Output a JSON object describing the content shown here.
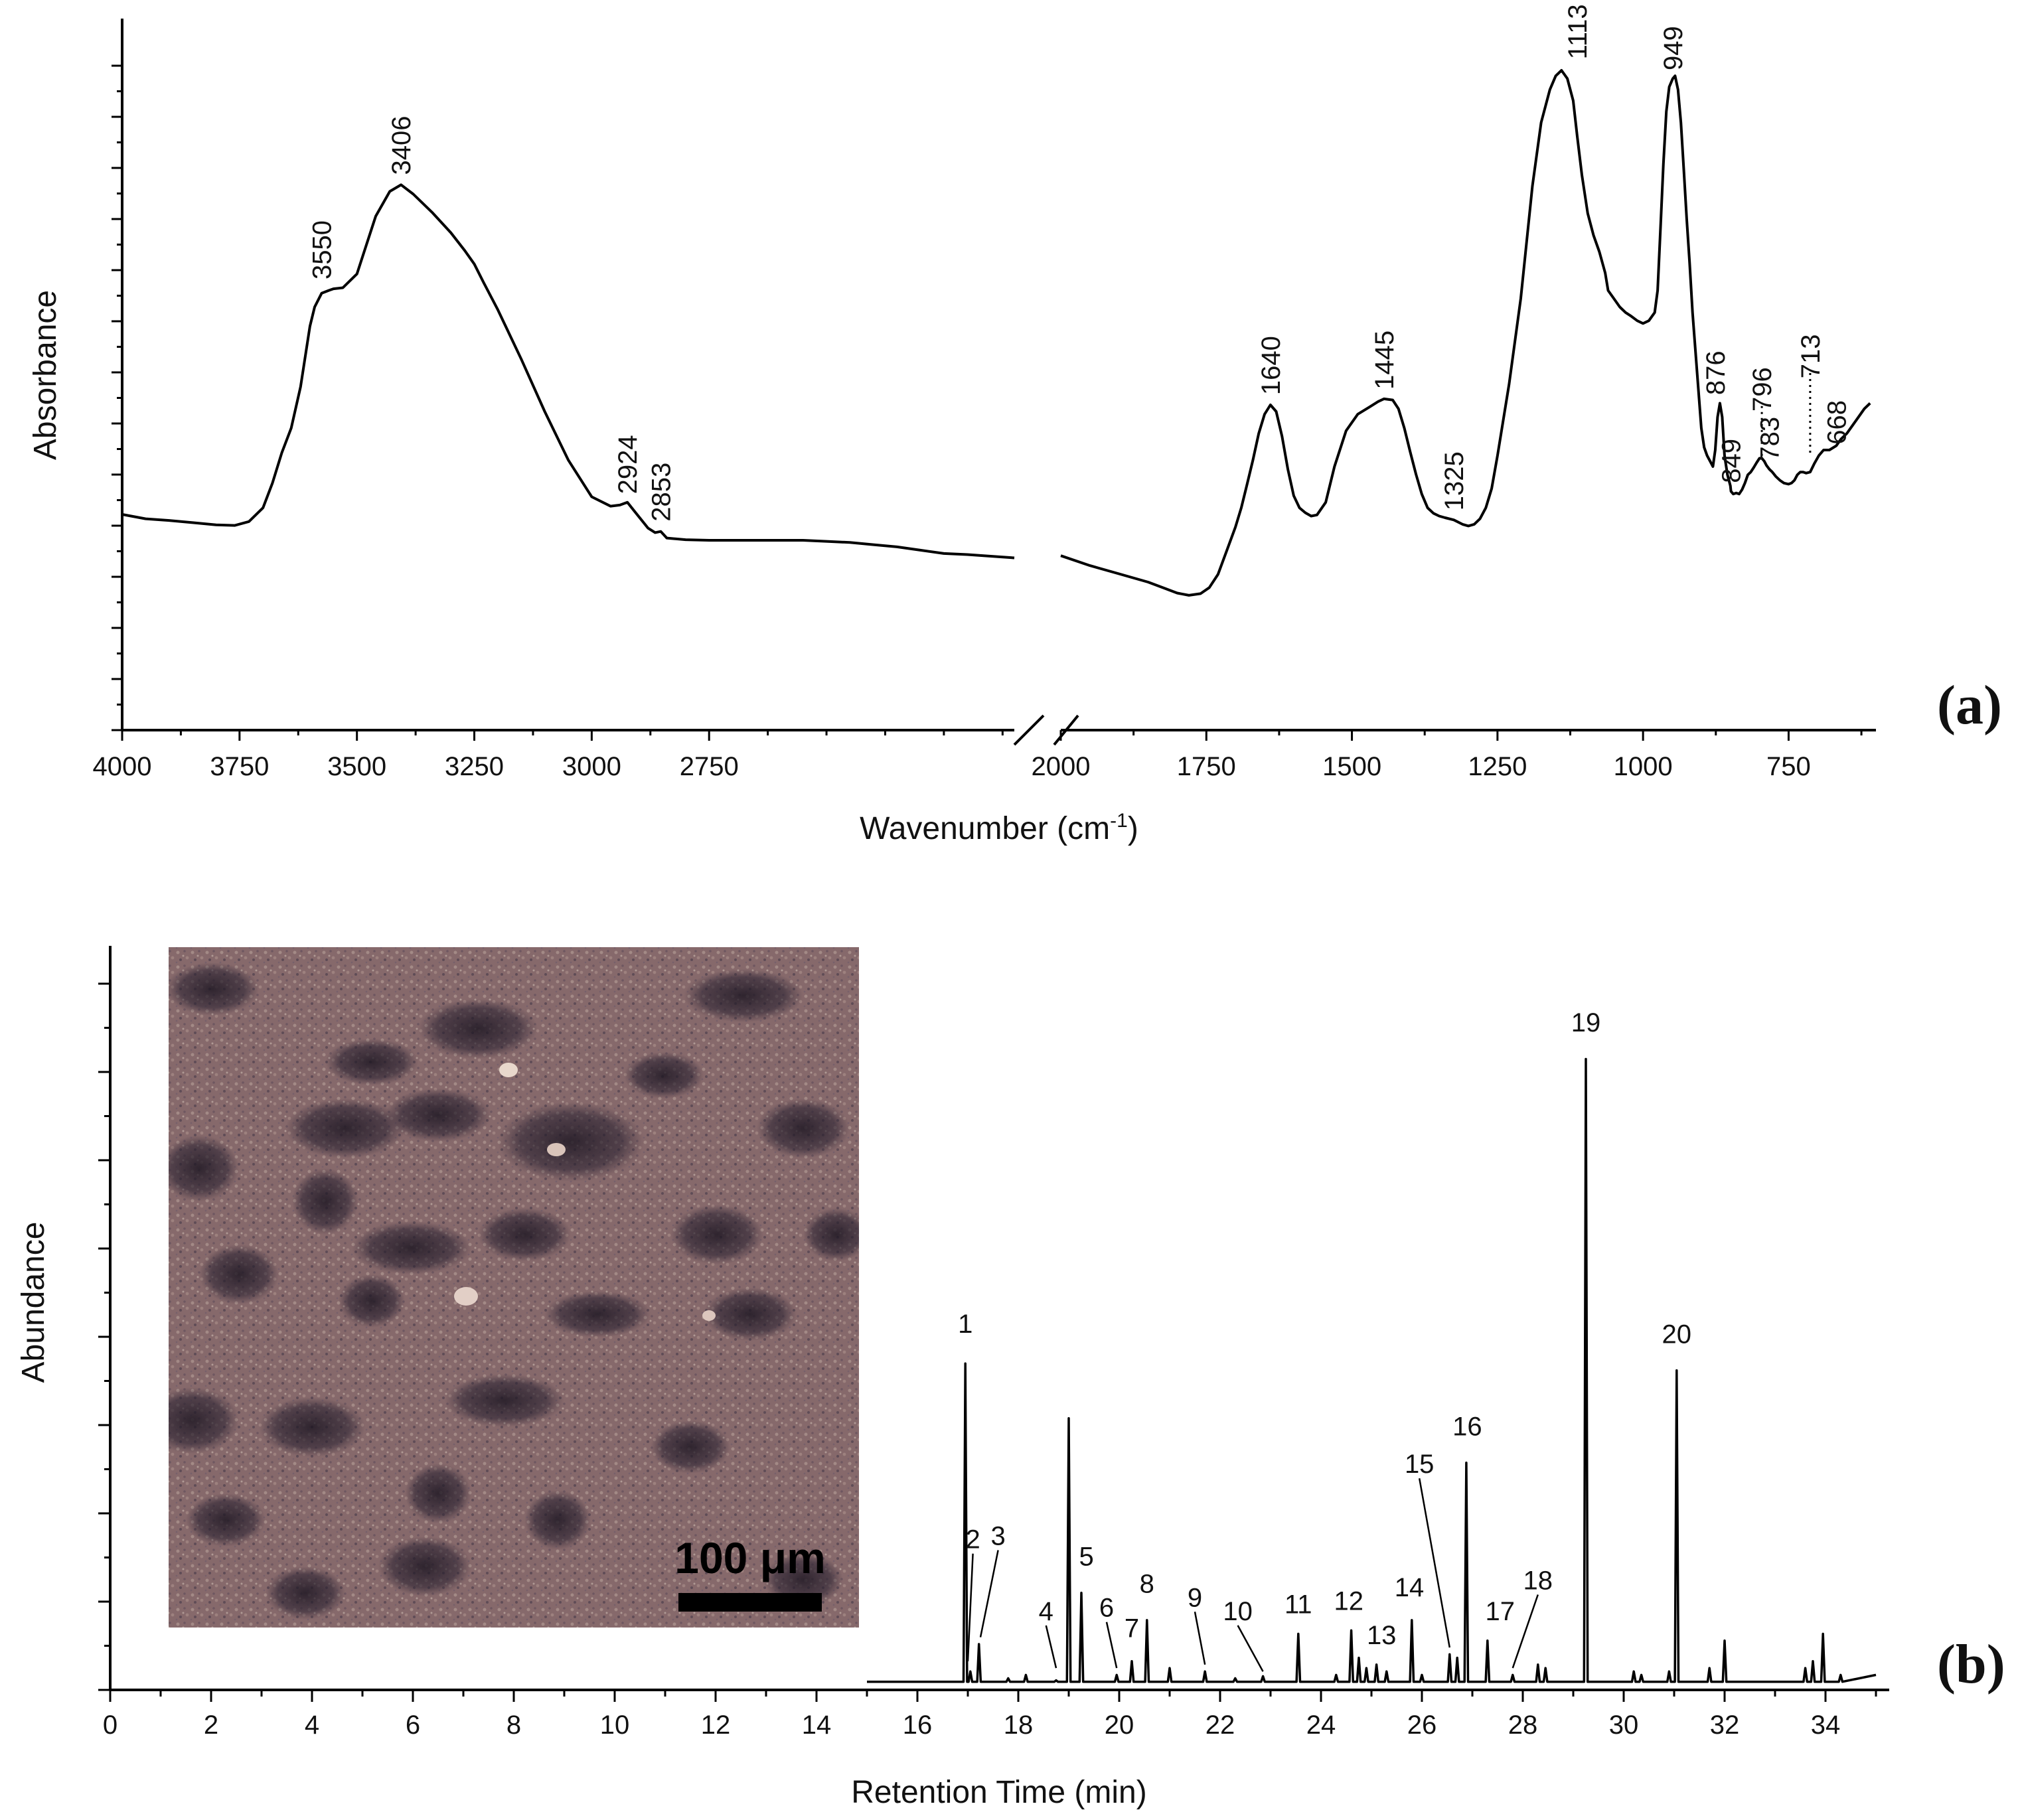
{
  "chart_data": [
    {
      "panel": "(a)",
      "type": "line",
      "xlabel": "Wavenumber (cm",
      "xlabel_sup": "-1",
      "xlabel_end": ")",
      "ylabel": "Absorbance",
      "xlim": [
        4000,
        600
      ],
      "axis_break": [
        2100,
        2000
      ],
      "x_ticks": [
        "4000",
        "3750",
        "3500",
        "3250",
        "3000",
        "2750",
        "2000",
        "1750",
        "1500",
        "1250",
        "1000",
        "750"
      ],
      "series": [
        {
          "x": [
            4000,
            3950,
            3900,
            3850,
            3800,
            3760,
            3730,
            3700,
            3680,
            3660,
            3640,
            3620,
            3600,
            3590,
            3575,
            3560,
            3550,
            3530,
            3500,
            3460,
            3430,
            3406,
            3380,
            3340,
            3300,
            3270,
            3250,
            3230,
            3200,
            3150,
            3100,
            3050,
            3000,
            2960,
            2940,
            2924,
            2910,
            2880,
            2865,
            2853,
            2840,
            2800,
            2750,
            2700,
            2650,
            2600,
            2550,
            2500,
            2450,
            2400,
            2350,
            2300,
            2250,
            2200,
            2150,
            2100,
            2000,
            1950,
            1900,
            1850,
            1820,
            1800,
            1780,
            1760,
            1745,
            1730,
            1715,
            1700,
            1690,
            1680,
            1670,
            1660,
            1650,
            1640,
            1630,
            1620,
            1610,
            1600,
            1590,
            1580,
            1570,
            1560,
            1545,
            1530,
            1510,
            1490,
            1470,
            1455,
            1445,
            1430,
            1420,
            1410,
            1400,
            1390,
            1380,
            1370,
            1360,
            1350,
            1340,
            1325,
            1310,
            1300,
            1290,
            1280,
            1270,
            1260,
            1250,
            1230,
            1210,
            1190,
            1175,
            1160,
            1150,
            1140,
            1130,
            1120,
            1113,
            1105,
            1095,
            1085,
            1075,
            1065,
            1060,
            1050,
            1040,
            1030,
            1020,
            1010,
            1000,
            990,
            980,
            975,
            970,
            965,
            960,
            955,
            949,
            945,
            940,
            935,
            930,
            925,
            920,
            915,
            910,
            905,
            900,
            895,
            890,
            885,
            880,
            876,
            872,
            868,
            864,
            860,
            855,
            850,
            849,
            845,
            840,
            835,
            830,
            825,
            820,
            815,
            810,
            805,
            800,
            796,
            792,
            788,
            783,
            778,
            772,
            765,
            758,
            750,
            745,
            740,
            735,
            730,
            725,
            720,
            713,
            706,
            698,
            690,
            680,
            668,
            660,
            650,
            640,
            630,
            620,
            610
          ],
          "y": [
            0.193,
            0.185,
            0.182,
            0.178,
            0.174,
            0.173,
            0.18,
            0.205,
            0.25,
            0.305,
            0.35,
            0.425,
            0.535,
            0.57,
            0.595,
            0.6,
            0.603,
            0.605,
            0.63,
            0.735,
            0.78,
            0.792,
            0.775,
            0.742,
            0.705,
            0.672,
            0.648,
            0.614,
            0.565,
            0.475,
            0.38,
            0.292,
            0.225,
            0.208,
            0.21,
            0.215,
            0.2,
            0.168,
            0.16,
            0.162,
            0.15,
            0.147,
            0.146,
            0.146,
            0.146,
            0.146,
            0.146,
            0.144,
            0.142,
            0.138,
            0.134,
            0.128,
            0.122,
            0.12,
            0.117,
            0.114,
            0.118,
            0.1,
            0.085,
            0.07,
            0.058,
            0.05,
            0.046,
            0.049,
            0.06,
            0.084,
            0.127,
            0.17,
            0.205,
            0.248,
            0.292,
            0.34,
            0.375,
            0.392,
            0.38,
            0.335,
            0.275,
            0.227,
            0.205,
            0.196,
            0.19,
            0.192,
            0.215,
            0.28,
            0.345,
            0.375,
            0.388,
            0.398,
            0.403,
            0.401,
            0.385,
            0.35,
            0.307,
            0.266,
            0.23,
            0.205,
            0.195,
            0.19,
            0.187,
            0.183,
            0.175,
            0.172,
            0.175,
            0.185,
            0.205,
            0.24,
            0.3,
            0.43,
            0.585,
            0.79,
            0.905,
            0.965,
            0.99,
            1.0,
            0.985,
            0.945,
            0.88,
            0.81,
            0.74,
            0.7,
            0.67,
            0.632,
            0.6,
            0.585,
            0.57,
            0.56,
            0.553,
            0.545,
            0.54,
            0.545,
            0.56,
            0.6,
            0.715,
            0.83,
            0.925,
            0.97,
            0.985,
            0.99,
            0.965,
            0.905,
            0.82,
            0.73,
            0.65,
            0.56,
            0.49,
            0.42,
            0.35,
            0.315,
            0.3,
            0.29,
            0.28,
            0.31,
            0.37,
            0.395,
            0.37,
            0.3,
            0.265,
            0.245,
            0.235,
            0.23,
            0.232,
            0.23,
            0.238,
            0.25,
            0.265,
            0.27,
            0.278,
            0.287,
            0.295,
            0.295,
            0.29,
            0.282,
            0.275,
            0.27,
            0.262,
            0.255,
            0.25,
            0.248,
            0.25,
            0.255,
            0.265,
            0.27,
            0.27,
            0.268,
            0.27,
            0.285,
            0.3,
            0.31,
            0.31,
            0.318,
            0.33,
            0.34,
            0.355,
            0.37,
            0.385,
            0.395
          ]
        }
      ],
      "peak_labels": [
        {
          "label": "3550",
          "x": 3575,
          "y": 0.62
        },
        {
          "label": "3406",
          "x": 3406,
          "y": 0.81
        },
        {
          "label": "2924",
          "x": 2924,
          "y": 0.23
        },
        {
          "label": "2853",
          "x": 2853,
          "y": 0.18
        },
        {
          "label": "1640",
          "x": 1640,
          "y": 0.41
        },
        {
          "label": "1445",
          "x": 1445,
          "y": 0.42
        },
        {
          "label": "1325",
          "x": 1325,
          "y": 0.2
        },
        {
          "label": "1113",
          "x": 1113,
          "y": 1.02
        },
        {
          "label": "949",
          "x": 949,
          "y": 1.0
        },
        {
          "label": "876",
          "x": 876,
          "y": 0.41
        },
        {
          "label": "849",
          "x": 849,
          "y": 0.25
        },
        {
          "label": "796",
          "x": 796,
          "y": 0.38
        },
        {
          "label": "783",
          "x": 783,
          "y": 0.29
        },
        {
          "label": "713",
          "x": 713,
          "y": 0.44
        },
        {
          "label": "668",
          "x": 668,
          "y": 0.32
        }
      ],
      "dotted_markers": [
        {
          "x": 796,
          "y_from": 0.39,
          "y_to": 0.295
        },
        {
          "x": 713,
          "y_from": 0.45,
          "y_to": 0.3
        }
      ]
    },
    {
      "panel": "(b)",
      "type": "line",
      "xlabel": "Retention Time (min)",
      "ylabel": "Abundance",
      "xlim": [
        0,
        35
      ],
      "ylim": [
        0,
        1
      ],
      "x_ticks": [
        "0",
        "2",
        "4",
        "6",
        "8",
        "10",
        "12",
        "14",
        "16",
        "18",
        "20",
        "22",
        "24",
        "26",
        "28",
        "30",
        "32",
        "34"
      ],
      "baseline": {
        "start": 15.0,
        "end": 35.0,
        "level": 0.01
      },
      "peaks": [
        {
          "x": 16.95,
          "y": 0.475
        },
        {
          "x": 17.05,
          "y": 0.025
        },
        {
          "x": 17.22,
          "y": 0.065
        },
        {
          "x": 17.8,
          "y": 0.015
        },
        {
          "x": 18.15,
          "y": 0.02
        },
        {
          "x": 18.75,
          "y": 0.012
        },
        {
          "x": 19.0,
          "y": 0.395
        },
        {
          "x": 19.25,
          "y": 0.14
        },
        {
          "x": 19.95,
          "y": 0.02
        },
        {
          "x": 20.25,
          "y": 0.04
        },
        {
          "x": 20.55,
          "y": 0.1
        },
        {
          "x": 21.0,
          "y": 0.03
        },
        {
          "x": 21.7,
          "y": 0.025
        },
        {
          "x": 22.3,
          "y": 0.015
        },
        {
          "x": 22.85,
          "y": 0.018
        },
        {
          "x": 23.55,
          "y": 0.08
        },
        {
          "x": 24.3,
          "y": 0.02
        },
        {
          "x": 24.6,
          "y": 0.085
        },
        {
          "x": 24.75,
          "y": 0.045
        },
        {
          "x": 24.9,
          "y": 0.03
        },
        {
          "x": 25.1,
          "y": 0.035
        },
        {
          "x": 25.3,
          "y": 0.025
        },
        {
          "x": 25.8,
          "y": 0.1
        },
        {
          "x": 26.0,
          "y": 0.02
        },
        {
          "x": 26.55,
          "y": 0.05
        },
        {
          "x": 26.7,
          "y": 0.045
        },
        {
          "x": 26.88,
          "y": 0.33
        },
        {
          "x": 27.3,
          "y": 0.07
        },
        {
          "x": 27.8,
          "y": 0.02
        },
        {
          "x": 28.3,
          "y": 0.035
        },
        {
          "x": 28.45,
          "y": 0.03
        },
        {
          "x": 29.25,
          "y": 0.92
        },
        {
          "x": 30.2,
          "y": 0.025
        },
        {
          "x": 30.35,
          "y": 0.02
        },
        {
          "x": 30.9,
          "y": 0.025
        },
        {
          "x": 31.05,
          "y": 0.465
        },
        {
          "x": 31.7,
          "y": 0.03
        },
        {
          "x": 32.0,
          "y": 0.07
        },
        {
          "x": 33.6,
          "y": 0.03
        },
        {
          "x": 33.75,
          "y": 0.04
        },
        {
          "x": 33.95,
          "y": 0.08
        },
        {
          "x": 34.3,
          "y": 0.02
        }
      ],
      "peak_labels": [
        {
          "label": "1",
          "x": 16.95,
          "y": 0.52,
          "line": false
        },
        {
          "label": "2",
          "x": 17.1,
          "y": 0.205,
          "line": true,
          "lx": 17.0,
          "ly": 0.04
        },
        {
          "label": "3",
          "x": 17.6,
          "y": 0.21,
          "line": true,
          "lx": 17.25,
          "ly": 0.075
        },
        {
          "label": "4",
          "x": 18.55,
          "y": 0.1,
          "line": true,
          "lx": 18.75,
          "ly": 0.03
        },
        {
          "label": "5",
          "x": 19.35,
          "y": 0.18,
          "line": false
        },
        {
          "label": "6",
          "x": 19.75,
          "y": 0.105,
          "line": true,
          "lx": 19.95,
          "ly": 0.03
        },
        {
          "label": "7",
          "x": 20.25,
          "y": 0.075,
          "line": false
        },
        {
          "label": "8",
          "x": 20.55,
          "y": 0.14,
          "line": false
        },
        {
          "label": "9",
          "x": 21.5,
          "y": 0.12,
          "line": true,
          "lx": 21.7,
          "ly": 0.035
        },
        {
          "label": "10",
          "x": 22.35,
          "y": 0.1,
          "line": true,
          "lx": 22.85,
          "ly": 0.025
        },
        {
          "label": "11",
          "x": 23.55,
          "y": 0.11,
          "line": false
        },
        {
          "label": "12",
          "x": 24.55,
          "y": 0.115,
          "line": false
        },
        {
          "label": "13",
          "x": 25.2,
          "y": 0.065,
          "line": false
        },
        {
          "label": "14",
          "x": 25.75,
          "y": 0.135,
          "line": false
        },
        {
          "label": "15",
          "x": 25.95,
          "y": 0.315,
          "line": true,
          "lx": 26.55,
          "ly": 0.06
        },
        {
          "label": "16",
          "x": 26.9,
          "y": 0.37,
          "line": false
        },
        {
          "label": "17",
          "x": 27.55,
          "y": 0.1,
          "line": false
        },
        {
          "label": "18",
          "x": 28.3,
          "y": 0.145,
          "line": true,
          "lx": 27.8,
          "ly": 0.03
        },
        {
          "label": "19",
          "x": 29.25,
          "y": 0.96,
          "line": false
        },
        {
          "label": "20",
          "x": 31.05,
          "y": 0.505,
          "line": false
        }
      ],
      "inset_photo": {
        "scale_bar_label": "100 μm",
        "colors": {
          "background": "#8a6e6e",
          "dark": "#2a2230",
          "light": "#c9b0a8"
        }
      }
    }
  ],
  "colors": {
    "line": "#000000",
    "axis": "#000000",
    "background": "#ffffff"
  }
}
